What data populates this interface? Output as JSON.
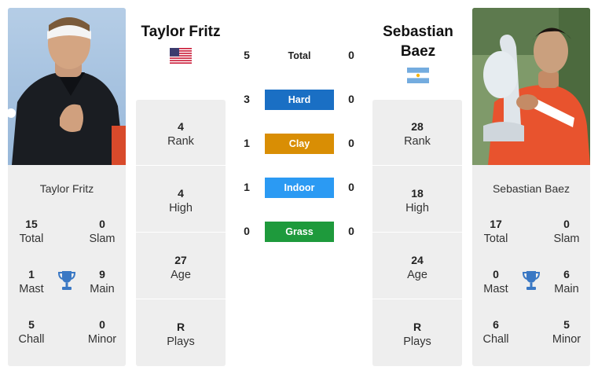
{
  "player1": {
    "name": "Taylor Fritz",
    "card_name": "Taylor Fritz",
    "flag_icon": "usa-flag-icon",
    "rank": "4",
    "rank_label": "Rank",
    "high": "4",
    "high_label": "High",
    "age": "27",
    "age_label": "Age",
    "plays": "R",
    "plays_label": "Plays",
    "total": "15",
    "total_label": "Total",
    "slam": "0",
    "slam_label": "Slam",
    "mast": "1",
    "mast_label": "Mast",
    "main": "9",
    "main_label": "Main",
    "chall": "5",
    "chall_label": "Chall",
    "minor": "0",
    "minor_label": "Minor"
  },
  "player2": {
    "name": "Sebastian Baez",
    "card_name": "Sebastian Baez",
    "flag_icon": "argentina-flag-icon",
    "rank": "28",
    "rank_label": "Rank",
    "high": "18",
    "high_label": "High",
    "age": "24",
    "age_label": "Age",
    "plays": "R",
    "plays_label": "Plays",
    "total": "17",
    "total_label": "Total",
    "slam": "0",
    "slam_label": "Slam",
    "mast": "0",
    "mast_label": "Mast",
    "main": "6",
    "main_label": "Main",
    "chall": "6",
    "chall_label": "Chall",
    "minor": "5",
    "minor_label": "Minor"
  },
  "h2h": [
    {
      "label": "Total",
      "p1": "5",
      "p2": "0",
      "color": ""
    },
    {
      "label": "Hard",
      "p1": "3",
      "p2": "0",
      "color": "#1a6fc4"
    },
    {
      "label": "Clay",
      "p1": "1",
      "p2": "0",
      "color": "#d98e04"
    },
    {
      "label": "Indoor",
      "p1": "1",
      "p2": "0",
      "color": "#2b9af3"
    },
    {
      "label": "Grass",
      "p1": "0",
      "p2": "0",
      "color": "#1e9a3c"
    }
  ],
  "colors": {
    "card_bg": "#eeeeee",
    "trophy": "#3a78c4"
  }
}
